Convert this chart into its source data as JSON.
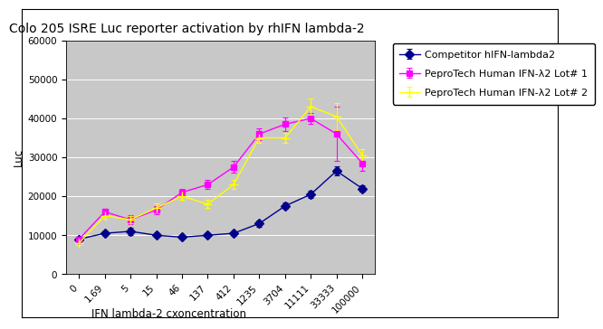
{
  "title": "Colo 205 ISRE Luc reporter activation by rhIFN lambda-2",
  "xlabel": "IFN lambda-2 cxoncentration",
  "ylabel": "Luc",
  "x_labels": [
    "0",
    "1.69",
    "5",
    "15",
    "46",
    "137",
    "412",
    "1235",
    "3704",
    "11111",
    "33333",
    "100000"
  ],
  "series": [
    {
      "label": "Competitor hIFN-lambda2",
      "color": "#00008B",
      "marker": "D",
      "markersize": 5,
      "values": [
        9000,
        10500,
        11000,
        10000,
        9500,
        10000,
        10500,
        13000,
        17500,
        20500,
        26500,
        22000
      ],
      "yerr": [
        400,
        500,
        1000,
        500,
        400,
        400,
        500,
        800,
        800,
        1000,
        1200,
        800
      ]
    },
    {
      "label": "PeproTech Human IFN-λ2 Lot# 1",
      "color": "#FF00FF",
      "marker": "s",
      "markersize": 5,
      "values": [
        9000,
        16000,
        14000,
        16500,
        21000,
        23000,
        27500,
        36000,
        38500,
        40000,
        36000,
        28500
      ],
      "yerr": [
        400,
        800,
        1200,
        1000,
        1000,
        1200,
        1500,
        1500,
        1800,
        1500,
        7000,
        2000
      ]
    },
    {
      "label": "PeproTech Human IFN-λ2 Lot# 2",
      "color": "#FFFF00",
      "marker": "+",
      "markersize": 7,
      "values": [
        8000,
        15000,
        14000,
        17000,
        20000,
        18000,
        23000,
        35000,
        35000,
        43000,
        40500,
        30500
      ],
      "yerr": [
        400,
        800,
        1000,
        1200,
        1000,
        1000,
        1200,
        1200,
        1200,
        2000,
        3500,
        1500
      ]
    }
  ],
  "ylim": [
    0,
    60000
  ],
  "yticks": [
    0,
    10000,
    20000,
    30000,
    40000,
    50000,
    60000
  ],
  "plot_bg_color": "#C8C8C8",
  "outer_bg_color": "#FFFFFF",
  "panel_bg_color": "#FFFFFF",
  "title_fontsize": 10,
  "axis_label_fontsize": 8.5,
  "tick_fontsize": 7.5,
  "legend_fontsize": 8
}
